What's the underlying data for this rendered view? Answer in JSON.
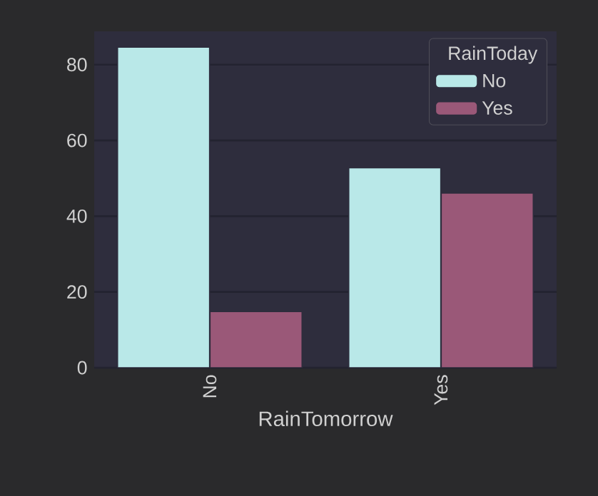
{
  "chart_data": {
    "type": "bar",
    "xlabel": "RainTomorrow",
    "legend_title": "RainToday",
    "categories": [
      "No",
      "Yes"
    ],
    "series": [
      {
        "name": "No",
        "color": "#b9e8e8",
        "values": [
          84.6,
          52.8
        ]
      },
      {
        "name": "Yes",
        "color": "#9a5878",
        "values": [
          14.8,
          46.1
        ]
      }
    ],
    "ylim": [
      0,
      88.8
    ],
    "yticks": [
      0,
      20,
      40,
      60,
      80
    ],
    "grid": "y",
    "legend": "top right"
  }
}
